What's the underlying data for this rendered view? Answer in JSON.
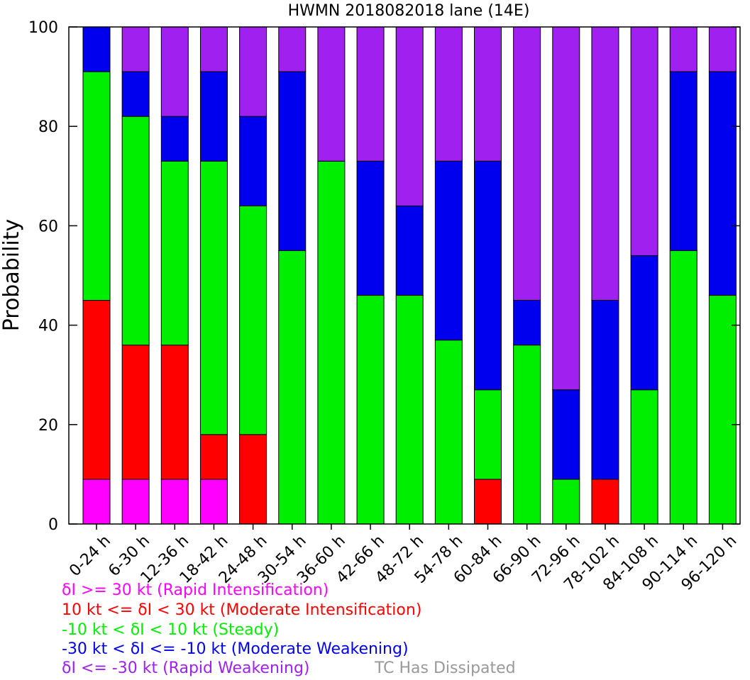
{
  "chart_data": {
    "type": "bar",
    "stacked": true,
    "title": "HWMN 2018082018 lane (14E)",
    "xlabel": "",
    "ylabel": "Probability",
    "ylim": [
      0,
      100
    ],
    "yticks": [
      0,
      20,
      40,
      60,
      80,
      100
    ],
    "categories": [
      "0-24 h",
      "6-30 h",
      "12-36 h",
      "18-42 h",
      "24-48 h",
      "30-54 h",
      "36-60 h",
      "42-66 h",
      "48-72 h",
      "54-78 h",
      "60-84 h",
      "66-90 h",
      "72-96 h",
      "78-102 h",
      "84-108 h",
      "90-114 h",
      "96-120 h"
    ],
    "series": [
      {
        "name": "δI >= 30 kt (Rapid Intensification)",
        "color": "#ff00ff",
        "values": [
          9,
          9,
          9,
          9,
          0,
          0,
          0,
          0,
          0,
          0,
          0,
          0,
          0,
          0,
          0,
          0,
          0
        ]
      },
      {
        "name": "10 kt <= δI < 30 kt (Moderate Intensification)",
        "color": "#ff0000",
        "values": [
          36,
          27,
          27,
          9,
          18,
          0,
          0,
          0,
          0,
          0,
          9,
          0,
          0,
          9,
          0,
          0,
          0
        ]
      },
      {
        "name": "-10 kt < δI < 10 kt (Steady)",
        "color": "#00ee00",
        "values": [
          46,
          46,
          37,
          55,
          46,
          55,
          73,
          46,
          46,
          37,
          18,
          36,
          9,
          0,
          27,
          55,
          46
        ]
      },
      {
        "name": "-30 kt < δI <= -10 kt (Moderate Weakening)",
        "color": "#0000ee",
        "values": [
          9,
          9,
          9,
          18,
          18,
          36,
          0,
          27,
          18,
          36,
          46,
          9,
          18,
          36,
          27,
          36,
          45
        ]
      },
      {
        "name": "δI <= -30 kt (Rapid Weakening)",
        "color": "#a020f0",
        "values": [
          0,
          9,
          18,
          9,
          18,
          9,
          27,
          27,
          36,
          27,
          27,
          55,
          73,
          55,
          46,
          9,
          9
        ]
      }
    ],
    "grid": false,
    "legend_position": "bottom-left"
  },
  "legend_extra": {
    "label": "TC Has Dissipated",
    "color": "#999999"
  }
}
